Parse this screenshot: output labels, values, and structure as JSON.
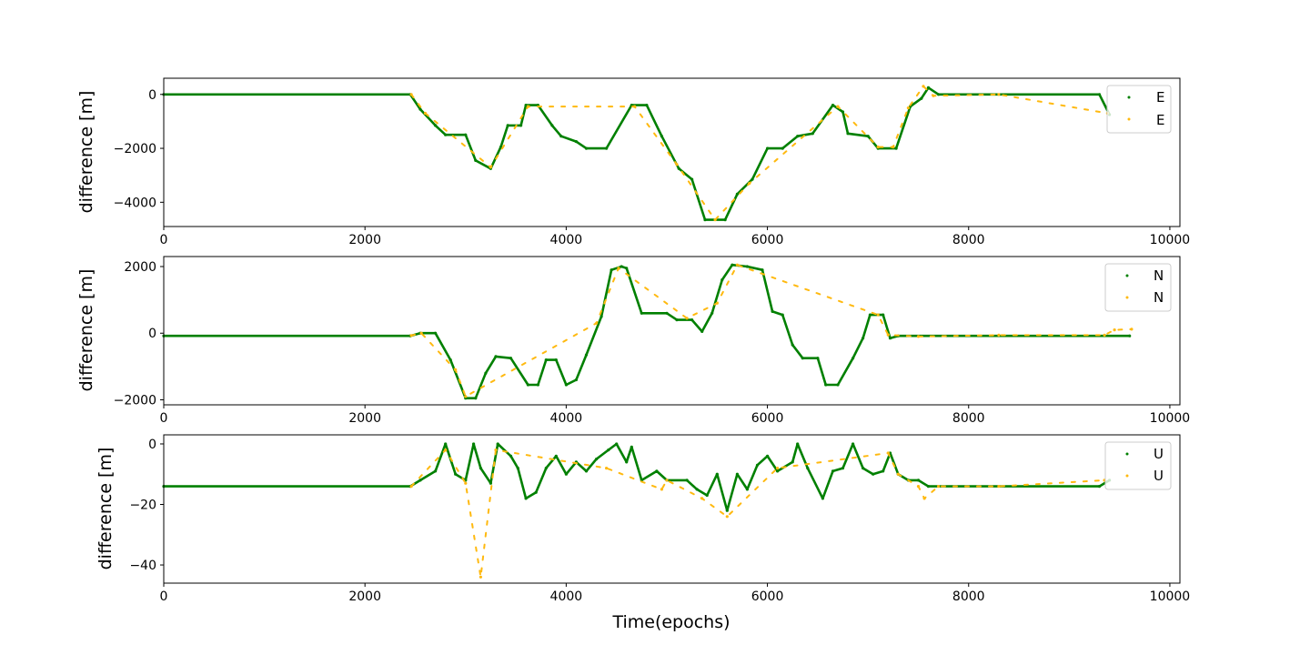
{
  "xlabel": "Time(epochs)",
  "colors": {
    "series_1": "#008000",
    "series_2": "#FFB90F"
  },
  "chart_data": [
    {
      "type": "scatter",
      "ylabel": "difference [m]",
      "xlim": [
        0,
        10100
      ],
      "ylim": [
        -4900,
        600
      ],
      "xticks": [
        0,
        2000,
        4000,
        6000,
        8000,
        10000
      ],
      "yticks": [
        0,
        -2000,
        -4000
      ],
      "xtick_labels": [
        "0",
        "2000",
        "4000",
        "6000",
        "8000",
        "10000"
      ],
      "ytick_labels": [
        "0",
        "−2000",
        "−4000"
      ],
      "legend": [
        "E",
        "E"
      ],
      "legend_position": "top-right",
      "series": [
        {
          "name": "E",
          "color": "#008000",
          "points": [
            [
              0,
              0
            ],
            [
              2450,
              0
            ],
            [
              2550,
              -550
            ],
            [
              2700,
              -1150
            ],
            [
              2800,
              -1500
            ],
            [
              3000,
              -1500
            ],
            [
              3100,
              -2450
            ],
            [
              3250,
              -2750
            ],
            [
              3350,
              -1950
            ],
            [
              3420,
              -1150
            ],
            [
              3550,
              -1150
            ],
            [
              3600,
              -400
            ],
            [
              3720,
              -400
            ],
            [
              3860,
              -1150
            ],
            [
              3950,
              -1550
            ],
            [
              4100,
              -1750
            ],
            [
              4200,
              -2000
            ],
            [
              4400,
              -2000
            ],
            [
              4650,
              -400
            ],
            [
              4800,
              -400
            ],
            [
              4950,
              -1550
            ],
            [
              5120,
              -2750
            ],
            [
              5250,
              -3150
            ],
            [
              5380,
              -4650
            ],
            [
              5580,
              -4650
            ],
            [
              5700,
              -3700
            ],
            [
              5850,
              -3150
            ],
            [
              6000,
              -2000
            ],
            [
              6150,
              -2000
            ],
            [
              6300,
              -1550
            ],
            [
              6450,
              -1450
            ],
            [
              6650,
              -400
            ],
            [
              6750,
              -650
            ],
            [
              6800,
              -1450
            ],
            [
              7000,
              -1550
            ],
            [
              7100,
              -2000
            ],
            [
              7280,
              -2000
            ],
            [
              7420,
              -450
            ],
            [
              7530,
              -150
            ],
            [
              7600,
              250
            ],
            [
              7700,
              0
            ],
            [
              9300,
              0
            ],
            [
              9400,
              -750
            ]
          ]
        },
        {
          "name": "E",
          "color": "#FFB90F",
          "points": [
            [
              2460,
              0
            ],
            [
              2600,
              -700
            ],
            [
              3250,
              -2700
            ],
            [
              3620,
              -450
            ],
            [
              4680,
              -450
            ],
            [
              5100,
              -2600
            ],
            [
              5480,
              -4650
            ],
            [
              5820,
              -3300
            ],
            [
              6700,
              -450
            ],
            [
              7100,
              -1950
            ],
            [
              7250,
              -1950
            ],
            [
              7400,
              -500
            ],
            [
              7550,
              300
            ],
            [
              7650,
              -50
            ],
            [
              8300,
              0
            ],
            [
              9380,
              -700
            ]
          ]
        }
      ]
    },
    {
      "type": "scatter",
      "ylabel": "difference [m]",
      "xlim": [
        0,
        10100
      ],
      "ylim": [
        -2150,
        2300
      ],
      "xticks": [
        0,
        2000,
        4000,
        6000,
        8000,
        10000
      ],
      "yticks": [
        2000,
        0,
        -2000
      ],
      "xtick_labels": [
        "0",
        "2000",
        "4000",
        "6000",
        "8000",
        "10000"
      ],
      "ytick_labels": [
        "2000",
        "0",
        "−2000"
      ],
      "legend": [
        "N",
        "N"
      ],
      "legend_position": "top-right",
      "series": [
        {
          "name": "N",
          "color": "#008000",
          "points": [
            [
              0,
              -80
            ],
            [
              2450,
              -80
            ],
            [
              2550,
              0
            ],
            [
              2700,
              0
            ],
            [
              2850,
              -800
            ],
            [
              3000,
              -1950
            ],
            [
              3100,
              -1950
            ],
            [
              3200,
              -1200
            ],
            [
              3300,
              -700
            ],
            [
              3450,
              -750
            ],
            [
              3620,
              -1550
            ],
            [
              3720,
              -1550
            ],
            [
              3800,
              -800
            ],
            [
              3900,
              -800
            ],
            [
              4000,
              -1550
            ],
            [
              4100,
              -1400
            ],
            [
              4200,
              -650
            ],
            [
              4350,
              500
            ],
            [
              4450,
              1900
            ],
            [
              4550,
              2000
            ],
            [
              4600,
              1950
            ],
            [
              4750,
              600
            ],
            [
              5000,
              600
            ],
            [
              5100,
              400
            ],
            [
              5250,
              400
            ],
            [
              5350,
              50
            ],
            [
              5450,
              600
            ],
            [
              5550,
              1600
            ],
            [
              5650,
              2050
            ],
            [
              5800,
              2000
            ],
            [
              5950,
              1900
            ],
            [
              6050,
              650
            ],
            [
              6150,
              550
            ],
            [
              6250,
              -350
            ],
            [
              6350,
              -750
            ],
            [
              6500,
              -750
            ],
            [
              6580,
              -1550
            ],
            [
              6700,
              -1550
            ],
            [
              6850,
              -750
            ],
            [
              6950,
              -150
            ],
            [
              7020,
              550
            ],
            [
              7150,
              550
            ],
            [
              7220,
              -150
            ],
            [
              7300,
              -80
            ],
            [
              9600,
              -80
            ]
          ]
        },
        {
          "name": "N",
          "color": "#FFB90F",
          "points": [
            [
              2460,
              -70
            ],
            [
              2560,
              0
            ],
            [
              2900,
              -1100
            ],
            [
              3000,
              -1900
            ],
            [
              4300,
              300
            ],
            [
              4520,
              1950
            ],
            [
              5200,
              450
            ],
            [
              5500,
              900
            ],
            [
              5700,
              2050
            ],
            [
              7100,
              550
            ],
            [
              7200,
              -50
            ],
            [
              7500,
              -100
            ],
            [
              8300,
              -60
            ],
            [
              9350,
              -60
            ],
            [
              9450,
              100
            ],
            [
              9620,
              120
            ]
          ]
        }
      ]
    },
    {
      "type": "scatter",
      "ylabel": "difference [m]",
      "xlim": [
        0,
        10100
      ],
      "ylim": [
        -46,
        3
      ],
      "xticks": [
        0,
        2000,
        4000,
        6000,
        8000,
        10000
      ],
      "yticks": [
        0,
        -20,
        -40
      ],
      "xtick_labels": [
        "0",
        "2000",
        "4000",
        "6000",
        "8000",
        "10000"
      ],
      "ytick_labels": [
        "0",
        "−20",
        "−40"
      ],
      "legend": [
        "U",
        "U"
      ],
      "legend_position": "top-right",
      "series": [
        {
          "name": "U",
          "color": "#008000",
          "points": [
            [
              0,
              -14
            ],
            [
              2450,
              -14
            ],
            [
              2550,
              -12
            ],
            [
              2700,
              -9
            ],
            [
              2800,
              0
            ],
            [
              2900,
              -10
            ],
            [
              3000,
              -12
            ],
            [
              3080,
              0
            ],
            [
              3150,
              -8
            ],
            [
              3250,
              -13
            ],
            [
              3320,
              0
            ],
            [
              3450,
              -4
            ],
            [
              3520,
              -8
            ],
            [
              3600,
              -18
            ],
            [
              3700,
              -16
            ],
            [
              3800,
              -8
            ],
            [
              3900,
              -4
            ],
            [
              4000,
              -10
            ],
            [
              4100,
              -6
            ],
            [
              4200,
              -9
            ],
            [
              4300,
              -5
            ],
            [
              4420,
              -2
            ],
            [
              4500,
              0
            ],
            [
              4600,
              -6
            ],
            [
              4650,
              -1
            ],
            [
              4750,
              -12
            ],
            [
              4900,
              -9
            ],
            [
              5000,
              -12
            ],
            [
              5200,
              -12
            ],
            [
              5300,
              -15
            ],
            [
              5400,
              -17
            ],
            [
              5500,
              -10
            ],
            [
              5600,
              -22
            ],
            [
              5700,
              -10
            ],
            [
              5800,
              -15
            ],
            [
              5900,
              -7
            ],
            [
              6000,
              -4
            ],
            [
              6100,
              -9
            ],
            [
              6250,
              -6
            ],
            [
              6300,
              0
            ],
            [
              6400,
              -8
            ],
            [
              6550,
              -18
            ],
            [
              6650,
              -9
            ],
            [
              6750,
              -8
            ],
            [
              6850,
              0
            ],
            [
              6950,
              -8
            ],
            [
              7050,
              -10
            ],
            [
              7150,
              -9
            ],
            [
              7220,
              -3
            ],
            [
              7300,
              -10
            ],
            [
              7400,
              -12
            ],
            [
              7500,
              -12
            ],
            [
              7600,
              -14
            ],
            [
              9300,
              -14
            ],
            [
              9400,
              -12
            ]
          ]
        },
        {
          "name": "U",
          "color": "#FFB90F",
          "points": [
            [
              2460,
              -14
            ],
            [
              2800,
              -2
            ],
            [
              3000,
              -13
            ],
            [
              3150,
              -44
            ],
            [
              3300,
              -2
            ],
            [
              4400,
              -8
            ],
            [
              4950,
              -15
            ],
            [
              5000,
              -12
            ],
            [
              5350,
              -18
            ],
            [
              5600,
              -24
            ],
            [
              6100,
              -8
            ],
            [
              7200,
              -3
            ],
            [
              7300,
              -10
            ],
            [
              7500,
              -14
            ],
            [
              7560,
              -18
            ],
            [
              7700,
              -14
            ],
            [
              8300,
              -14
            ],
            [
              9350,
              -12
            ]
          ]
        }
      ]
    }
  ]
}
